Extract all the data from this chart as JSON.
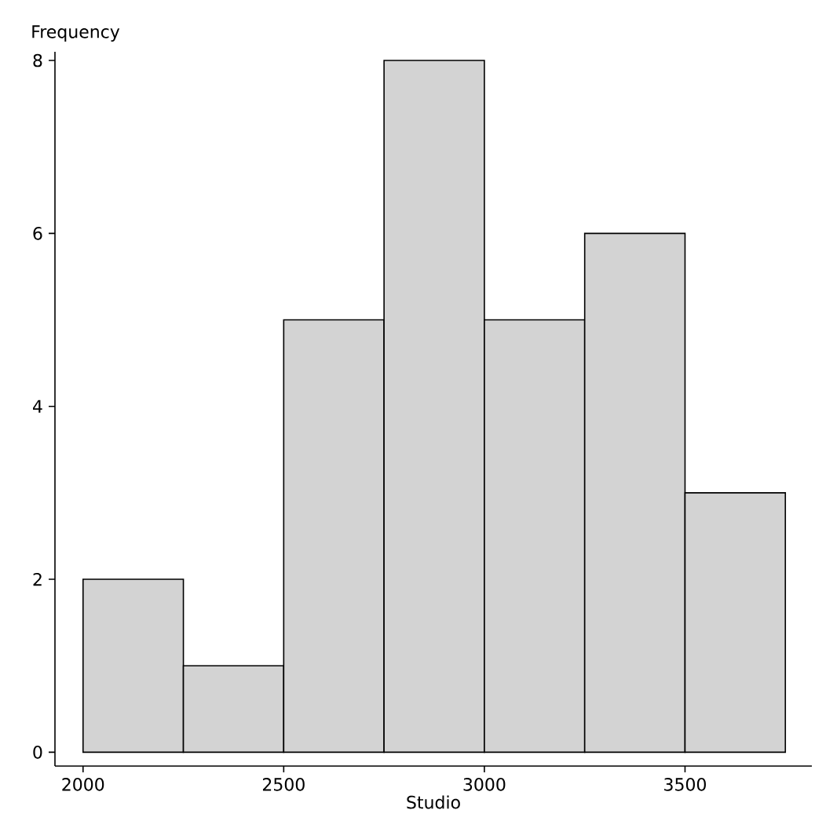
{
  "chart_data": {
    "type": "histogram",
    "xlabel": "Studio",
    "ylabel": "Frequency",
    "bins": [
      2000,
      2250,
      2500,
      2750,
      3000,
      3250,
      3500,
      3750
    ],
    "values": [
      2,
      1,
      5,
      8,
      5,
      6,
      3
    ],
    "color": "#d3d3d3",
    "xlim": [
      1930,
      3816
    ],
    "ylim": [
      -0.16,
      8.1
    ],
    "xticks": [
      2000,
      2500,
      3000,
      3500
    ],
    "yticks": [
      0,
      2,
      4,
      6,
      8
    ],
    "grid": false
  }
}
